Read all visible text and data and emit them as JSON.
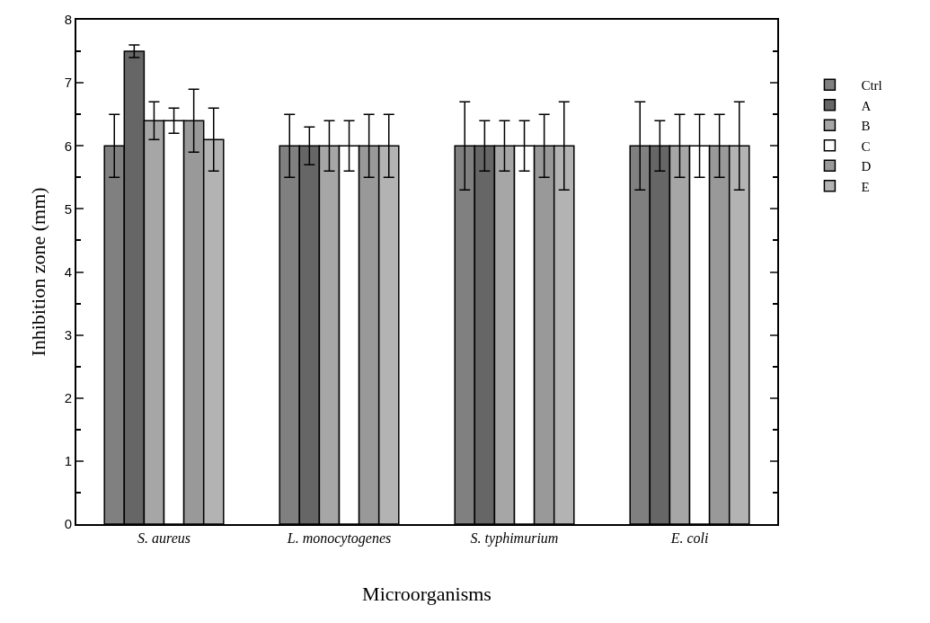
{
  "chart_data": {
    "type": "bar",
    "xlabel": "Microorganisms",
    "ylabel": "Inhibition zone (mm)",
    "categories": [
      "S. aureus",
      "L. monocytogenes",
      "S. typhimurium",
      "E. coli"
    ],
    "ylim": [
      0,
      8
    ],
    "yticks": [
      0,
      1,
      2,
      3,
      4,
      5,
      6,
      7,
      8
    ],
    "grid": false,
    "legend": "right",
    "series": [
      {
        "name": "Ctrl",
        "color": "#808080",
        "values": [
          6,
          6,
          6,
          6
        ],
        "errors": [
          0.5,
          0.5,
          0.7,
          0.7
        ]
      },
      {
        "name": "A",
        "color": "#666666",
        "values": [
          7.5,
          6,
          6,
          6
        ],
        "errors": [
          0.1,
          0.3,
          0.4,
          0.4
        ]
      },
      {
        "name": "B",
        "color": "#a6a6a6",
        "values": [
          6.4,
          6,
          6,
          6
        ],
        "errors": [
          0.3,
          0.4,
          0.4,
          0.5
        ]
      },
      {
        "name": "C",
        "color": "#ffffff",
        "values": [
          6.4,
          6,
          6,
          6
        ],
        "errors": [
          0.2,
          0.4,
          0.4,
          0.5
        ]
      },
      {
        "name": "D",
        "color": "#999999",
        "values": [
          6.4,
          6,
          6,
          6
        ],
        "errors": [
          0.5,
          0.5,
          0.5,
          0.5
        ]
      },
      {
        "name": "E",
        "color": "#b3b3b3",
        "values": [
          6.1,
          6,
          6,
          6
        ],
        "errors": [
          0.5,
          0.5,
          0.7,
          0.7
        ]
      }
    ]
  }
}
